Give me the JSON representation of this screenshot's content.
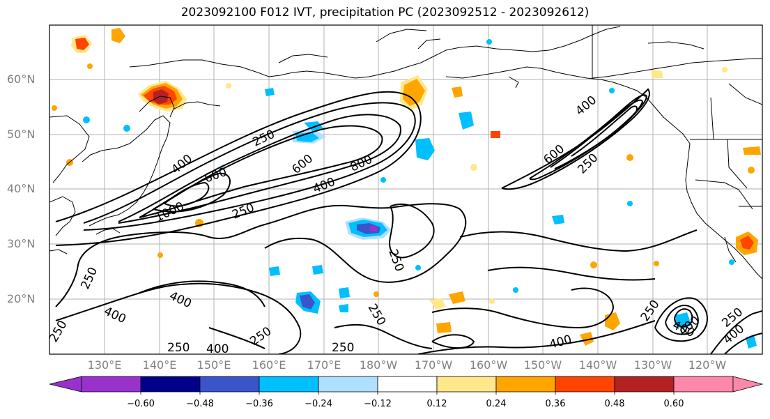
{
  "title": "2023092100 F012 IVT, precipitation PC (2023092512 - 2023092612)",
  "map": {
    "lat_labels": [
      "60°N",
      "50°N",
      "40°N",
      "30°N",
      "20°N"
    ],
    "lon_labels": [
      "130°E",
      "140°E",
      "150°E",
      "160°E",
      "170°E",
      "180°W",
      "170°W",
      "160°W",
      "150°W",
      "140°W",
      "130°W",
      "120°W"
    ],
    "contour_labels": [
      "250",
      "600",
      "800",
      "400",
      "600",
      "1000",
      "250",
      "400",
      "600",
      "250",
      "250",
      "400",
      "400",
      "250",
      "250",
      "400",
      "250",
      "250",
      "400",
      "400",
      "250",
      "250",
      "250",
      "400",
      "400",
      "250",
      "400"
    ],
    "label_color": "#808080"
  },
  "colorbar": {
    "ticks": [
      "−0.60",
      "−0.48",
      "−0.36",
      "−0.24",
      "−0.12",
      "0.12",
      "0.24",
      "0.36",
      "0.48",
      "0.60"
    ],
    "colors": [
      "#9932CC",
      "#00008B",
      "#3A55C9",
      "#00BFFF",
      "#B0E0FF",
      "#FFFFFF",
      "#FFE88A",
      "#FFA500",
      "#FF4500",
      "#B22222",
      "#FF88AA"
    ]
  }
}
